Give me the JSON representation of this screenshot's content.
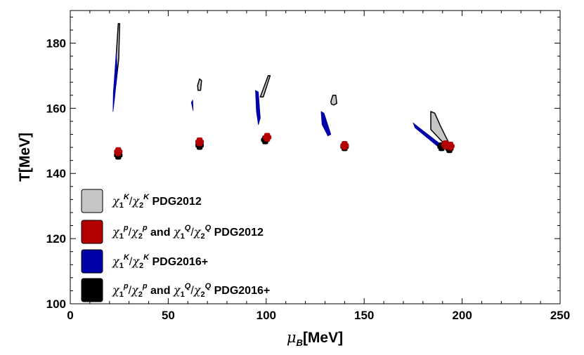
{
  "chart_data": {
    "type": "scatter",
    "title": "",
    "xlabel": "μB[MeV]",
    "ylabel": "T[MeV]",
    "xlim": [
      0,
      250
    ],
    "ylim": [
      100,
      190
    ],
    "x_ticks": [
      0,
      50,
      100,
      150,
      200,
      250
    ],
    "y_ticks": [
      100,
      120,
      140,
      160,
      180
    ],
    "x_tick_labels": [
      "0",
      "50",
      "100",
      "150",
      "200",
      "250"
    ],
    "y_tick_labels": [
      "100",
      "120",
      "140",
      "160",
      "180"
    ],
    "legend_position": "bottom-left",
    "colors": {
      "grey": "#c6c6c6",
      "red": "#b30000",
      "blue": "#0000a8",
      "black": "#000000"
    },
    "legend": [
      {
        "key": "grey",
        "label": "χ1K/χ2K PDG2012"
      },
      {
        "key": "red",
        "label": "χ1p/χ2p and χ1Q/χ2Q PDG2012"
      },
      {
        "key": "blue",
        "label": "χ1K/χ2K PDG2016+"
      },
      {
        "key": "black",
        "label": "χ1p/χ2p and χ1Q/χ2Q PDG2016+"
      }
    ],
    "series": [
      {
        "name": "χ1K/χ2K PDG2012",
        "color": "grey",
        "regions": [
          [
            [
              22.5,
              167
            ],
            [
              24.5,
              186
            ],
            [
              25.2,
              186
            ],
            [
              24.7,
              175
            ],
            [
              23.2,
              167
            ]
          ],
          [
            [
              65,
              167
            ],
            [
              66,
              169
            ],
            [
              67,
              168.5
            ],
            [
              66.5,
              165.5
            ],
            [
              65.2,
              165.5
            ]
          ],
          [
            [
              97,
              163.5
            ],
            [
              101,
              170
            ],
            [
              102,
              170
            ],
            [
              98.5,
              163.5
            ]
          ],
          [
            [
              133,
              162
            ],
            [
              134,
              164
            ],
            [
              135.5,
              164
            ],
            [
              136,
              161.5
            ],
            [
              134.5,
              161
            ],
            [
              133.3,
              161.3
            ]
          ],
          [
            [
              184,
              159
            ],
            [
              184,
              153.5
            ],
            [
              191,
              149
            ],
            [
              193.5,
              149
            ],
            [
              189,
              154.5
            ],
            [
              186,
              158.5
            ]
          ]
        ]
      },
      {
        "name": "χ1K/χ2K PDG2016+",
        "color": "blue",
        "regions": [
          [
            [
              21.8,
              159
            ],
            [
              22,
              165
            ],
            [
              23.5,
              177
            ],
            [
              24,
              171
            ],
            [
              22.6,
              163
            ]
          ],
          [
            [
              61.8,
              161.8
            ],
            [
              62.7,
              159.3
            ],
            [
              62.5,
              162.5
            ]
          ],
          [
            [
              94.5,
              165.5
            ],
            [
              96,
              165
            ],
            [
              97,
              157
            ],
            [
              96,
              155
            ],
            [
              95,
              159
            ]
          ],
          [
            [
              128,
              159
            ],
            [
              129.5,
              158.5
            ],
            [
              133,
              152
            ],
            [
              131.5,
              151.5
            ],
            [
              128.5,
              155
            ]
          ],
          [
            [
              175,
              155.5
            ],
            [
              176,
              155
            ],
            [
              190,
              148.5
            ],
            [
              188.5,
              147.8
            ],
            [
              176,
              154
            ]
          ]
        ]
      },
      {
        "name": "χ1p/χ2p and χ1Q/χ2Q PDG2016+",
        "color": "black",
        "points": [
          [
            24.5,
            145.6
          ],
          [
            66,
            148.6
          ],
          [
            99.5,
            150.3
          ],
          [
            140,
            148.2
          ],
          [
            189.5,
            148.2
          ],
          [
            193.5,
            147.6
          ]
        ]
      },
      {
        "name": "χ1p/χ2p and χ1Q/χ2Q PDG2012",
        "color": "red",
        "points": [
          [
            24.5,
            146.7
          ],
          [
            66,
            149.7
          ],
          [
            100.5,
            151.1
          ],
          [
            140,
            148.6
          ],
          [
            191.5,
            148.8
          ],
          [
            194,
            148.4
          ]
        ]
      }
    ]
  }
}
